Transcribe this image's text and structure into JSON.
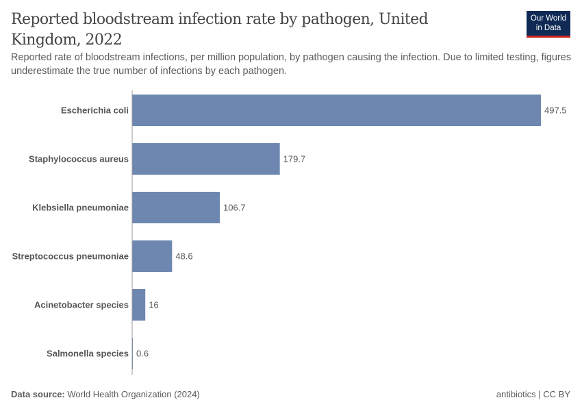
{
  "header": {
    "title": "Reported bloodstream infection rate by pathogen, United Kingdom, 2022",
    "subtitle": "Reported rate of bloodstream infections, per million population, by pathogen causing the infection. Due to limited testing, figures underestimate the true number of infections by each pathogen.",
    "logo": "Our World in Data"
  },
  "footer": {
    "source_label": "Data source:",
    "source": "World Health Organization (2024)",
    "license": "antibiotics | CC BY"
  },
  "colors": {
    "bar": "#6d87b0",
    "logo_bg": "#0f2b55",
    "logo_accent": "#ce261e"
  },
  "chart_data": {
    "type": "bar",
    "orientation": "horizontal",
    "categories": [
      "Escherichia coli",
      "Staphylococcus aureus",
      "Klebsiella pneumoniae",
      "Streptococcus pneumoniae",
      "Acinetobacter species",
      "Salmonella species"
    ],
    "values": [
      497.5,
      179.7,
      106.7,
      48.6,
      16,
      0.6
    ],
    "value_labels": [
      "497.5",
      "179.7",
      "106.7",
      "48.6",
      "16",
      "0.6"
    ],
    "xlim": [
      0,
      497.5
    ],
    "grid": false
  }
}
